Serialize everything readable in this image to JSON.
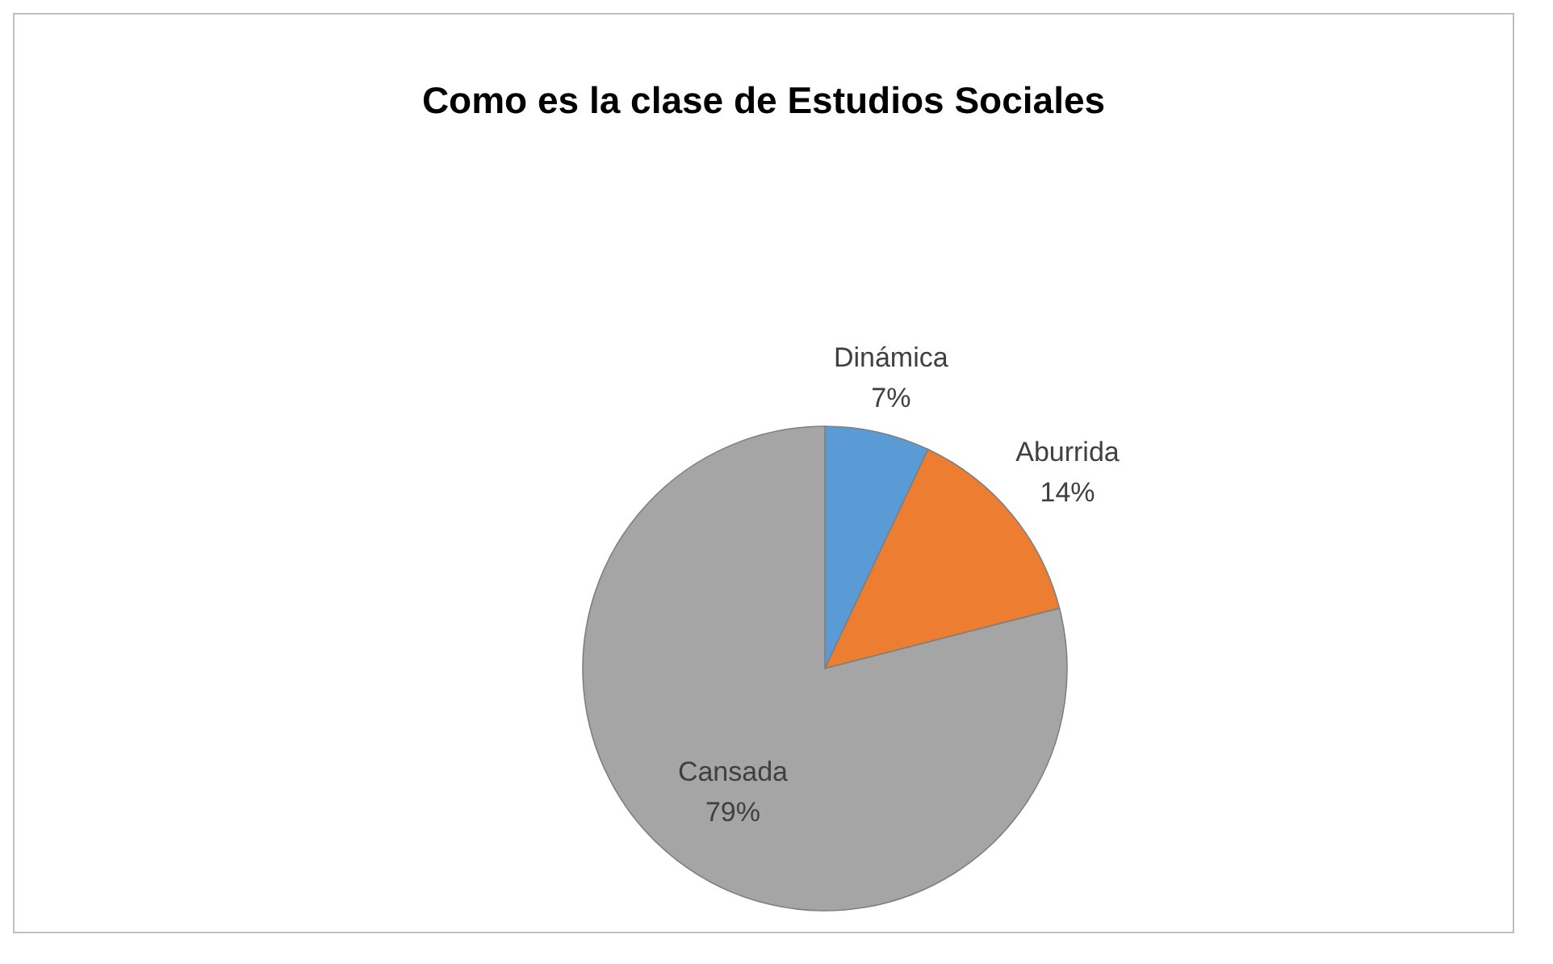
{
  "chart_data": {
    "type": "pie",
    "title": "Como es la clase de Estudios Sociales",
    "categories": [
      "Dinámica",
      "Aburrida",
      "Cansada"
    ],
    "values": [
      7,
      14,
      79
    ],
    "value_labels": [
      "7%",
      "14%",
      "79%"
    ],
    "colors": [
      "#5b9bd5",
      "#ed7d31",
      "#a5a5a5"
    ],
    "legend": false
  }
}
